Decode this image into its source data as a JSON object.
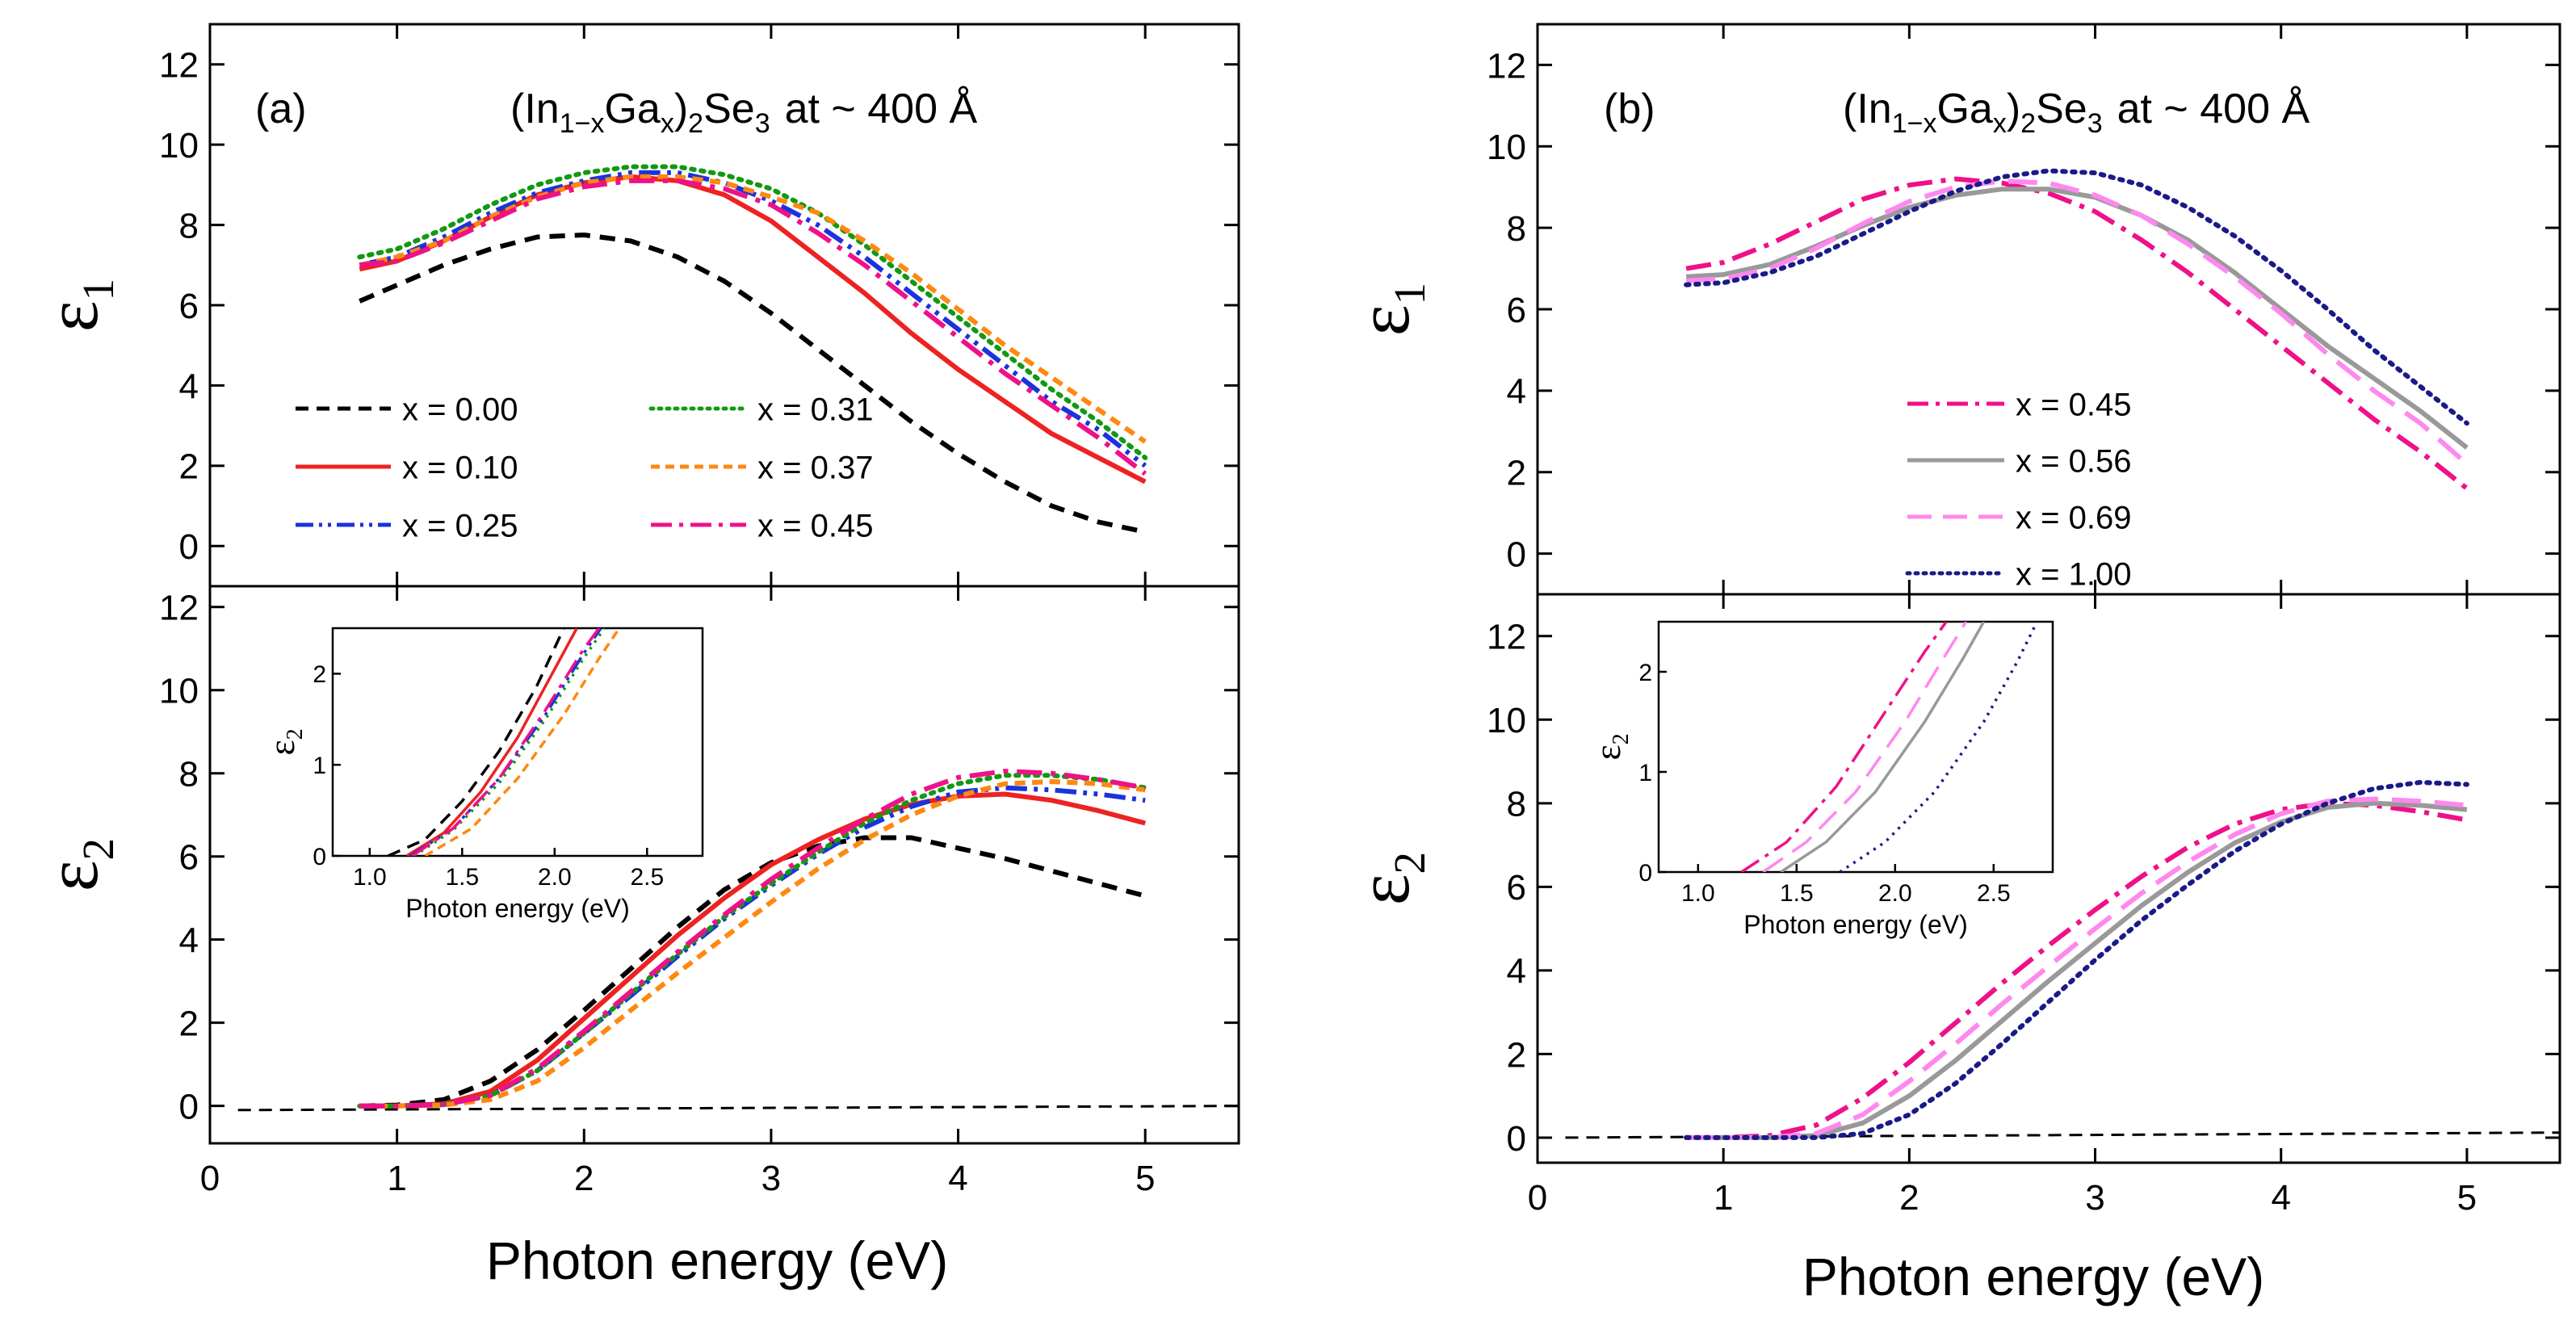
{
  "figure": {
    "xlabel": "Photon energy (eV)",
    "panels": [
      {
        "label": "(a)",
        "title": {
          "base1": "(In",
          "sub1": "1−x",
          "base2": "Ga",
          "sub2": "x",
          "base3": ")",
          "sub3": "2",
          "base4": "Se",
          "sub4": "3",
          "tail": "at ~ 400 Å"
        }
      },
      {
        "label": "(b)",
        "title": {
          "base1": "(In",
          "sub1": "1−x",
          "base2": "Ga",
          "sub2": "x",
          "base3": ")",
          "sub3": "2",
          "base4": "Se",
          "sub4": "3",
          "tail": "at ~ 400 Å"
        }
      }
    ]
  },
  "chart_data": [
    {
      "id": "a-eps1",
      "type": "line",
      "panel": "(a)",
      "ylabel": {
        "symbol": "ε",
        "sub": "1"
      },
      "xlim": [
        0,
        5.5
      ],
      "ylim": [
        -1,
        13
      ],
      "xticks": [
        0,
        1,
        2,
        3,
        4,
        5
      ],
      "yticks": [
        0,
        2,
        4,
        6,
        8,
        10,
        12
      ],
      "x": [
        0.8,
        1.0,
        1.25,
        1.5,
        1.75,
        2.0,
        2.25,
        2.5,
        2.75,
        3.0,
        3.25,
        3.5,
        3.75,
        4.0,
        4.25,
        4.5,
        4.75,
        5.0
      ],
      "series": [
        {
          "name": "x = 0.00",
          "color": "#000000",
          "dash": "dashed",
          "values": [
            6.1,
            6.5,
            7.0,
            7.4,
            7.7,
            7.75,
            7.6,
            7.2,
            6.6,
            5.8,
            4.9,
            4.0,
            3.1,
            2.3,
            1.6,
            1.0,
            0.6,
            0.35
          ]
        },
        {
          "name": "x = 0.10",
          "color": "#ee2222",
          "dash": "solid",
          "values": [
            6.9,
            7.1,
            7.6,
            8.2,
            8.75,
            9.05,
            9.2,
            9.1,
            8.75,
            8.1,
            7.2,
            6.3,
            5.3,
            4.4,
            3.6,
            2.8,
            2.2,
            1.6
          ]
        },
        {
          "name": "x = 0.25",
          "color": "#1a33dd",
          "dash": "dashdotdot",
          "values": [
            7.0,
            7.2,
            7.7,
            8.3,
            8.8,
            9.1,
            9.3,
            9.3,
            9.05,
            8.6,
            8.0,
            7.2,
            6.3,
            5.4,
            4.5,
            3.6,
            2.9,
            2.0
          ]
        },
        {
          "name": "x = 0.31",
          "color": "#119911",
          "dash": "dotted",
          "values": [
            7.2,
            7.4,
            7.9,
            8.5,
            9.0,
            9.3,
            9.45,
            9.45,
            9.25,
            8.9,
            8.3,
            7.5,
            6.6,
            5.7,
            4.8,
            3.9,
            3.1,
            2.2
          ]
        },
        {
          "name": "x = 0.37",
          "color": "#ff8811",
          "dash": "shortdash",
          "values": [
            7.0,
            7.2,
            7.6,
            8.2,
            8.7,
            9.05,
            9.2,
            9.2,
            9.05,
            8.7,
            8.3,
            7.6,
            6.8,
            5.9,
            5.0,
            4.2,
            3.4,
            2.6
          ]
        },
        {
          "name": "x = 0.45",
          "color": "#ee1188",
          "dash": "dashdot",
          "values": [
            7.0,
            7.1,
            7.55,
            8.1,
            8.65,
            8.95,
            9.1,
            9.1,
            8.9,
            8.5,
            7.8,
            7.0,
            6.1,
            5.2,
            4.3,
            3.5,
            2.7,
            1.8
          ]
        }
      ],
      "legend": {
        "placement": "lower-left",
        "columns": 2
      }
    },
    {
      "id": "a-eps2",
      "type": "line",
      "panel": "(a)",
      "ylabel": {
        "symbol": "ε",
        "sub": "2"
      },
      "xlim": [
        0,
        5.5
      ],
      "ylim": [
        -0.9,
        12.5
      ],
      "xticks": [
        0,
        1,
        2,
        3,
        4,
        5
      ],
      "yticks": [
        0,
        2,
        4,
        6,
        8,
        10,
        12
      ],
      "x": [
        0.8,
        1.0,
        1.25,
        1.5,
        1.75,
        2.0,
        2.25,
        2.5,
        2.75,
        3.0,
        3.25,
        3.5,
        3.75,
        4.0,
        4.25,
        4.5,
        4.75,
        5.0
      ],
      "series": [
        {
          "name": "x = 0.00",
          "color": "#000000",
          "dash": "dashed",
          "values": [
            0.0,
            0.02,
            0.15,
            0.6,
            1.35,
            2.3,
            3.3,
            4.3,
            5.2,
            5.85,
            6.25,
            6.45,
            6.45,
            6.2,
            5.95,
            5.65,
            5.35,
            5.05
          ]
        },
        {
          "name": "x = 0.10",
          "color": "#ee2222",
          "dash": "solid",
          "values": [
            0.0,
            0.0,
            0.05,
            0.35,
            1.1,
            2.1,
            3.1,
            4.1,
            5.0,
            5.8,
            6.4,
            6.9,
            7.25,
            7.45,
            7.5,
            7.35,
            7.1,
            6.8
          ]
        },
        {
          "name": "x = 0.25",
          "color": "#1a33dd",
          "dash": "dashdotdot",
          "values": [
            0.0,
            0.0,
            0.03,
            0.25,
            0.85,
            1.75,
            2.65,
            3.6,
            4.5,
            5.3,
            6.05,
            6.7,
            7.2,
            7.55,
            7.65,
            7.6,
            7.5,
            7.35
          ]
        },
        {
          "name": "x = 0.31",
          "color": "#119911",
          "dash": "dotted",
          "values": [
            0.0,
            0.0,
            0.03,
            0.25,
            0.85,
            1.75,
            2.7,
            3.65,
            4.55,
            5.35,
            6.1,
            6.8,
            7.35,
            7.75,
            7.95,
            7.95,
            7.85,
            7.65
          ]
        },
        {
          "name": "x = 0.37",
          "color": "#ff8811",
          "dash": "shortdash",
          "values": [
            0.0,
            0.0,
            0.02,
            0.15,
            0.6,
            1.4,
            2.3,
            3.2,
            4.05,
            4.9,
            5.7,
            6.4,
            7.0,
            7.45,
            7.75,
            7.8,
            7.75,
            7.6
          ]
        },
        {
          "name": "x = 0.45",
          "color": "#ee1188",
          "dash": "dashdot",
          "values": [
            0.0,
            0.0,
            0.03,
            0.25,
            0.9,
            1.8,
            2.75,
            3.7,
            4.6,
            5.45,
            6.2,
            6.9,
            7.5,
            7.9,
            8.05,
            8.0,
            7.85,
            7.65
          ]
        }
      ],
      "reference_line": {
        "name": "zero baseline",
        "color": "#000000",
        "dash": "dashed",
        "x": [
          0.15,
          5.5
        ],
        "values": [
          -0.1,
          0.0
        ]
      },
      "inset": {
        "xlabel": "Photon energy (eV)",
        "ylabel": {
          "symbol": "ε",
          "sub": "2"
        },
        "xlim": [
          0.8,
          2.8
        ],
        "ylim": [
          0,
          2.5
        ],
        "xticks": [
          1.0,
          1.5,
          2.0,
          2.5
        ],
        "xtick_labels": [
          "1.0",
          "1.5",
          "2.0",
          "2.5"
        ],
        "yticks": [
          0,
          1,
          2
        ],
        "series": [
          {
            "name": "x = 0.00",
            "color": "#000000",
            "dash": "dashed",
            "x": [
              1.1,
              1.3,
              1.5,
              1.7,
              1.9,
              2.05
            ],
            "values": [
              0.0,
              0.18,
              0.6,
              1.15,
              1.85,
              2.5
            ]
          },
          {
            "name": "x = 0.10",
            "color": "#ee2222",
            "dash": "solid",
            "x": [
              1.2,
              1.4,
              1.6,
              1.8,
              2.0,
              2.12
            ],
            "values": [
              0.0,
              0.25,
              0.7,
              1.3,
              2.05,
              2.5
            ]
          },
          {
            "name": "x = 0.25",
            "color": "#1a33dd",
            "dash": "dashdotdot",
            "x": [
              1.22,
              1.45,
              1.7,
              1.95,
              2.15,
              2.25
            ],
            "values": [
              0.0,
              0.3,
              0.85,
              1.55,
              2.2,
              2.5
            ]
          },
          {
            "name": "x = 0.31",
            "color": "#119911",
            "dash": "dotted",
            "x": [
              1.24,
              1.45,
              1.7,
              1.95,
              2.15,
              2.27
            ],
            "values": [
              0.0,
              0.28,
              0.8,
              1.5,
              2.15,
              2.5
            ]
          },
          {
            "name": "x = 0.37",
            "color": "#ff8811",
            "dash": "shortdash",
            "x": [
              1.3,
              1.55,
              1.8,
              2.05,
              2.25,
              2.35
            ],
            "values": [
              0.0,
              0.3,
              0.85,
              1.55,
              2.2,
              2.5
            ]
          },
          {
            "name": "x = 0.45",
            "color": "#ee1188",
            "dash": "dashdot",
            "x": [
              1.23,
              1.45,
              1.7,
              1.95,
              2.15,
              2.24
            ],
            "values": [
              0.0,
              0.3,
              0.85,
              1.6,
              2.25,
              2.5
            ]
          }
        ]
      }
    },
    {
      "id": "b-eps1",
      "type": "line",
      "panel": "(b)",
      "ylabel": {
        "symbol": "ε",
        "sub": "1"
      },
      "xlim": [
        0,
        5.5
      ],
      "ylim": [
        -1,
        13
      ],
      "xticks": [
        0,
        1,
        2,
        3,
        4,
        5
      ],
      "yticks": [
        0,
        2,
        4,
        6,
        8,
        10,
        12
      ],
      "x": [
        0.8,
        1.0,
        1.25,
        1.5,
        1.75,
        2.0,
        2.25,
        2.5,
        2.75,
        3.0,
        3.25,
        3.5,
        3.75,
        4.0,
        4.25,
        4.5,
        4.75,
        5.0
      ],
      "series": [
        {
          "name": "x = 0.45",
          "color": "#ee1188",
          "dash": "dashdot",
          "values": [
            7.0,
            7.15,
            7.6,
            8.15,
            8.7,
            9.05,
            9.2,
            9.1,
            8.85,
            8.4,
            7.7,
            6.9,
            6.0,
            5.1,
            4.2,
            3.3,
            2.5,
            1.6
          ]
        },
        {
          "name": "x = 0.56",
          "color": "#999999",
          "dash": "solid",
          "values": [
            6.8,
            6.85,
            7.1,
            7.55,
            8.05,
            8.5,
            8.8,
            8.95,
            8.95,
            8.75,
            8.3,
            7.7,
            6.9,
            6.0,
            5.1,
            4.3,
            3.5,
            2.6
          ]
        },
        {
          "name": "x = 0.69",
          "color": "#ff88ee",
          "dash": "longdash",
          "values": [
            6.7,
            6.75,
            7.0,
            7.5,
            8.1,
            8.65,
            9.0,
            9.15,
            9.1,
            8.8,
            8.3,
            7.6,
            6.8,
            5.9,
            4.9,
            4.0,
            3.2,
            2.2
          ]
        },
        {
          "name": "x = 1.00",
          "color": "#1a1a88",
          "dash": "dotted",
          "values": [
            6.6,
            6.65,
            6.9,
            7.3,
            7.85,
            8.4,
            8.9,
            9.25,
            9.4,
            9.35,
            9.05,
            8.5,
            7.8,
            6.95,
            6.0,
            5.0,
            4.1,
            3.2
          ]
        }
      ],
      "legend": {
        "placement": "center-right",
        "columns": 1
      }
    },
    {
      "id": "b-eps2",
      "type": "line",
      "panel": "(b)",
      "ylabel": {
        "symbol": "ε",
        "sub": "2"
      },
      "xlim": [
        0,
        5.5
      ],
      "ylim": [
        -0.6,
        13
      ],
      "xticks": [
        0,
        1,
        2,
        3,
        4,
        5
      ],
      "yticks": [
        0,
        2,
        4,
        6,
        8,
        10,
        12
      ],
      "x": [
        0.8,
        1.0,
        1.25,
        1.5,
        1.75,
        2.0,
        2.25,
        2.5,
        2.75,
        3.0,
        3.25,
        3.5,
        3.75,
        4.0,
        4.25,
        4.5,
        4.75,
        5.0
      ],
      "series": [
        {
          "name": "x = 0.45",
          "color": "#ee1188",
          "dash": "dashdot",
          "values": [
            0.0,
            0.0,
            0.05,
            0.3,
            0.95,
            1.8,
            2.75,
            3.7,
            4.6,
            5.45,
            6.25,
            6.95,
            7.5,
            7.85,
            8.0,
            7.95,
            7.8,
            7.6
          ]
        },
        {
          "name": "x = 0.56",
          "color": "#999999",
          "dash": "solid",
          "values": [
            0.0,
            0.0,
            0.0,
            0.05,
            0.35,
            1.0,
            1.85,
            2.8,
            3.75,
            4.65,
            5.55,
            6.35,
            7.05,
            7.55,
            7.9,
            8.0,
            7.95,
            7.85
          ]
        },
        {
          "name": "x = 0.69",
          "color": "#ff88ee",
          "dash": "longdash",
          "values": [
            0.0,
            0.0,
            0.0,
            0.1,
            0.55,
            1.35,
            2.25,
            3.2,
            4.1,
            5.0,
            5.85,
            6.6,
            7.25,
            7.75,
            8.05,
            8.1,
            8.05,
            7.95
          ]
        },
        {
          "name": "x = 1.00",
          "color": "#1a1a88",
          "dash": "dotted",
          "values": [
            0.0,
            0.0,
            0.0,
            0.0,
            0.1,
            0.55,
            1.3,
            2.25,
            3.25,
            4.25,
            5.2,
            6.05,
            6.85,
            7.5,
            8.0,
            8.35,
            8.5,
            8.45
          ]
        }
      ],
      "reference_line": {
        "name": "zero baseline",
        "color": "#000000",
        "dash": "dashed",
        "x": [
          0.15,
          5.5
        ],
        "values": [
          0.0,
          0.12
        ]
      },
      "inset": {
        "xlabel": "Photon energy (eV)",
        "ylabel": {
          "symbol": "ε",
          "sub": "2"
        },
        "xlim": [
          0.8,
          2.8
        ],
        "ylim": [
          0,
          2.5
        ],
        "xticks": [
          1.0,
          1.5,
          2.0,
          2.5
        ],
        "xtick_labels": [
          "1.0",
          "1.5",
          "2.0",
          "2.5"
        ],
        "yticks": [
          0,
          1,
          2
        ],
        "series": [
          {
            "name": "x = 0.45",
            "color": "#ee1188",
            "dash": "dashdot",
            "x": [
              1.22,
              1.45,
              1.7,
              1.95,
              2.15,
              2.26
            ],
            "values": [
              0.0,
              0.3,
              0.85,
              1.6,
              2.2,
              2.5
            ]
          },
          {
            "name": "x = 0.56",
            "color": "#999999",
            "dash": "solid",
            "x": [
              1.42,
              1.65,
              1.9,
              2.15,
              2.35,
              2.45
            ],
            "values": [
              0.0,
              0.3,
              0.8,
              1.5,
              2.15,
              2.5
            ]
          },
          {
            "name": "x = 0.69",
            "color": "#ff88ee",
            "dash": "longdash",
            "x": [
              1.33,
              1.55,
              1.8,
              2.05,
              2.25,
              2.36
            ],
            "values": [
              0.0,
              0.3,
              0.8,
              1.5,
              2.15,
              2.5
            ]
          },
          {
            "name": "x = 1.00",
            "color": "#1a1a88",
            "dash": "dotted",
            "x": [
              1.72,
              1.95,
              2.2,
              2.45,
              2.62,
              2.72
            ],
            "values": [
              0.0,
              0.3,
              0.8,
              1.5,
              2.1,
              2.5
            ]
          }
        ]
      }
    }
  ]
}
